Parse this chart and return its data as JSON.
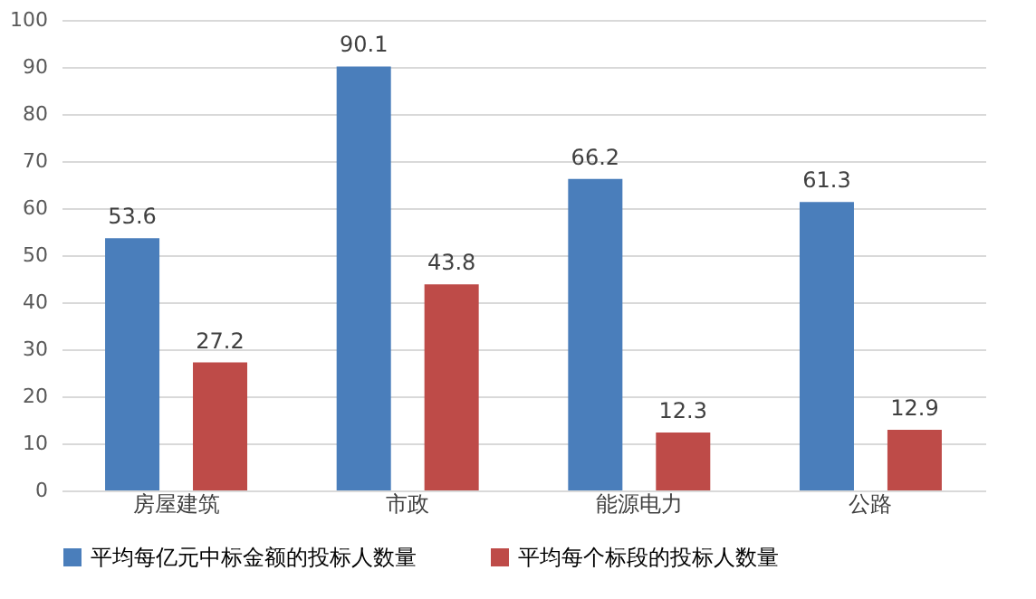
{
  "chart_data": {
    "type": "bar",
    "categories": [
      "房屋建筑",
      "市政",
      "能源电力",
      "公路"
    ],
    "series": [
      {
        "name": "平均每亿元中标金额的投标人数量",
        "color": "#4a7ebb",
        "values": [
          53.6,
          90.1,
          66.2,
          61.3
        ]
      },
      {
        "name": "平均每个标段的投标人数量",
        "color": "#be4b48",
        "values": [
          27.2,
          43.8,
          12.3,
          12.9
        ]
      }
    ],
    "ylim": [
      0,
      100
    ],
    "yticks": [
      0,
      10,
      20,
      30,
      40,
      50,
      60,
      70,
      80,
      90,
      100
    ],
    "grid": "y",
    "legend": "bottom",
    "data_labels": true
  }
}
